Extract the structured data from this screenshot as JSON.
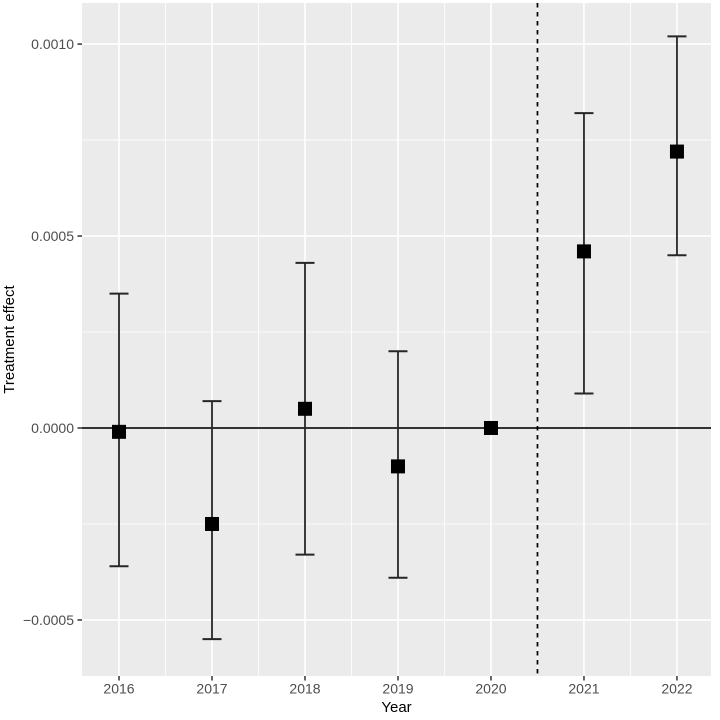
{
  "chart_data": {
    "type": "scatter",
    "title": "",
    "xlabel": "Year",
    "ylabel": "Treatment effect",
    "description": "Event-study style treatment effect plot with point estimates (black squares) and confidence interval error bars by year; reference year 2020 at zero; dashed vertical line between 2020 and 2021; solid horizontal line at 0.",
    "series": [
      {
        "name": "Treatment effect estimate",
        "points": [
          {
            "year": 2016,
            "estimate": -1e-05,
            "ci_low": -0.00036,
            "ci_high": 0.00035
          },
          {
            "year": 2017,
            "estimate": -0.00025,
            "ci_low": -0.00055,
            "ci_high": 7e-05
          },
          {
            "year": 2018,
            "estimate": 5e-05,
            "ci_low": -0.00033,
            "ci_high": 0.00043
          },
          {
            "year": 2019,
            "estimate": -0.0001,
            "ci_low": -0.00039,
            "ci_high": 0.0002
          },
          {
            "year": 2020,
            "estimate": 0.0,
            "ci_low": null,
            "ci_high": null
          },
          {
            "year": 2021,
            "estimate": 0.00046,
            "ci_low": 9e-05,
            "ci_high": 0.00082
          },
          {
            "year": 2022,
            "estimate": 0.00072,
            "ci_low": 0.00045,
            "ci_high": 0.00102
          }
        ]
      }
    ],
    "reference_year": 2020,
    "hline_y": 0,
    "vline_x": 2020.5,
    "xticks": [
      {
        "value": 2016,
        "label": "2016"
      },
      {
        "value": 2017,
        "label": "2017"
      },
      {
        "value": 2018,
        "label": "2018"
      },
      {
        "value": 2019,
        "label": "2019"
      },
      {
        "value": 2020,
        "label": "2020"
      },
      {
        "value": 2021,
        "label": "2021"
      },
      {
        "value": 2022,
        "label": "2022"
      }
    ],
    "yticks": [
      {
        "value": 0.001,
        "label": "0.0010"
      },
      {
        "value": 0.0005,
        "label": "0.0005"
      },
      {
        "value": 0.0,
        "label": "0.0000"
      },
      {
        "value": -0.0005,
        "label": "−0.0005"
      }
    ],
    "y_minor_ticks": [
      0.00075,
      0.00025,
      -0.00025,
      -0.00075
    ],
    "xlim": [
      2015.602,
      2022.366
    ],
    "ylim": [
      -0.000646,
      0.001107
    ],
    "grid": true,
    "legend": null,
    "colors": {
      "panel_bg": "#EBEBEB",
      "grid_major": "#FFFFFF",
      "grid_minor": "#FFFFFF",
      "tick_label": "#4D4D4D",
      "axis_title": "#000000",
      "point": "#000000",
      "errorbar": "#262626",
      "zero_line": "#333333",
      "vline": "#000000",
      "tick_mark": "#333333"
    }
  }
}
